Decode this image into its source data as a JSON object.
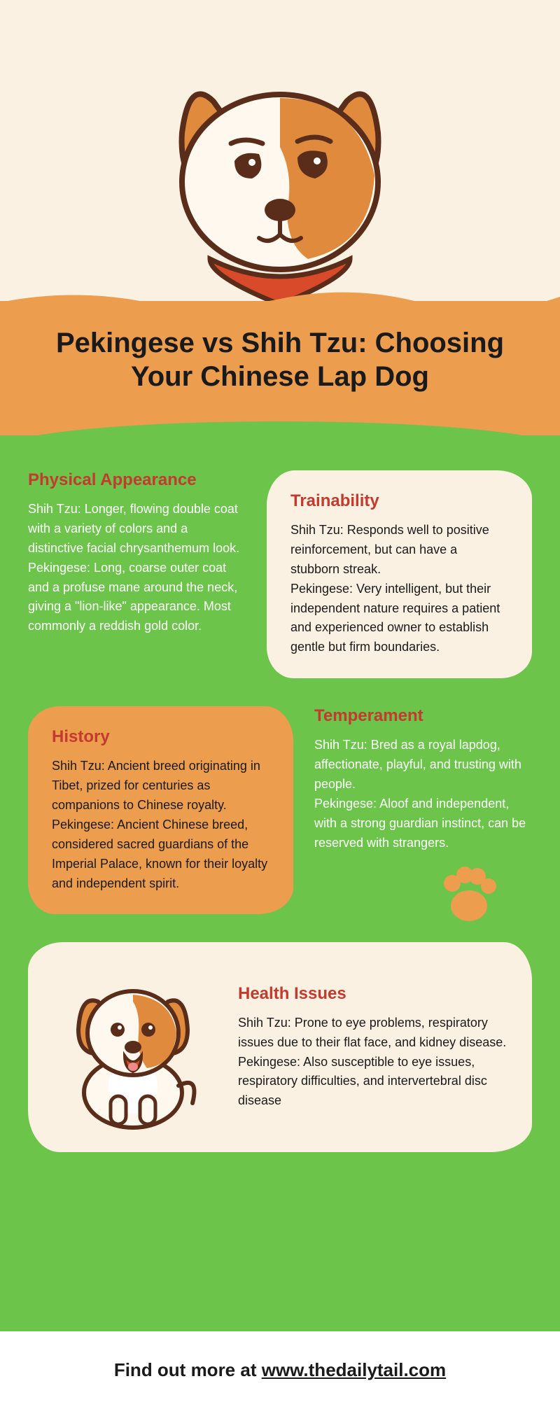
{
  "colors": {
    "cream": "#fbf1e2",
    "orange": "#ec9d4e",
    "green": "#6cc44b",
    "heading_red": "#c33b2e",
    "text_dark": "#1a1a1a",
    "text_light": "#ffffff",
    "dog_brown": "#e08a3d",
    "dog_outline": "#5a2d1a",
    "dog_collar": "#d84a2a"
  },
  "title": "Pekingese vs Shih Tzu: Choosing Your Chinese Lap Dog",
  "sections": {
    "physical": {
      "title": "Physical Appearance",
      "body": "Shih Tzu: Longer, flowing double coat with a variety of colors and a distinctive facial chrysanthemum look.\nPekingese: Long, coarse outer coat and a profuse mane around the neck, giving a \"lion-like\" appearance. Most commonly a reddish gold color."
    },
    "trainability": {
      "title": "Trainability",
      "body": "Shih Tzu: Responds well to positive reinforcement, but can have a stubborn streak.\nPekingese: Very intelligent, but their independent nature requires a patient and experienced owner to establish gentle but firm boundaries."
    },
    "history": {
      "title": "History",
      "body": "Shih Tzu: Ancient breed originating in Tibet, prized for centuries as companions to Chinese royalty.\nPekingese: Ancient Chinese breed, considered sacred guardians of the Imperial Palace, known for their loyalty and independent spirit."
    },
    "temperament": {
      "title": "Temperament",
      "body": "Shih Tzu: Bred as a royal lapdog, affectionate, playful, and trusting with people.\nPekingese: Aloof and independent, with a strong guardian instinct, can be reserved with strangers."
    },
    "health": {
      "title": "Health Issues",
      "body": "Shih Tzu: Prone to eye problems, respiratory issues due to their flat face, and kidney disease.\nPekingese: Also susceptible to eye issues, respiratory difficulties, and intervertebral disc disease"
    }
  },
  "footer": {
    "prefix": "Find out more at ",
    "link_text": "www.thedailytail.com",
    "link_href": "https://www.thedailytail.com"
  },
  "typography": {
    "title_fontsize": 40,
    "section_title_fontsize": 24,
    "body_fontsize": 18,
    "footer_fontsize": 26
  }
}
